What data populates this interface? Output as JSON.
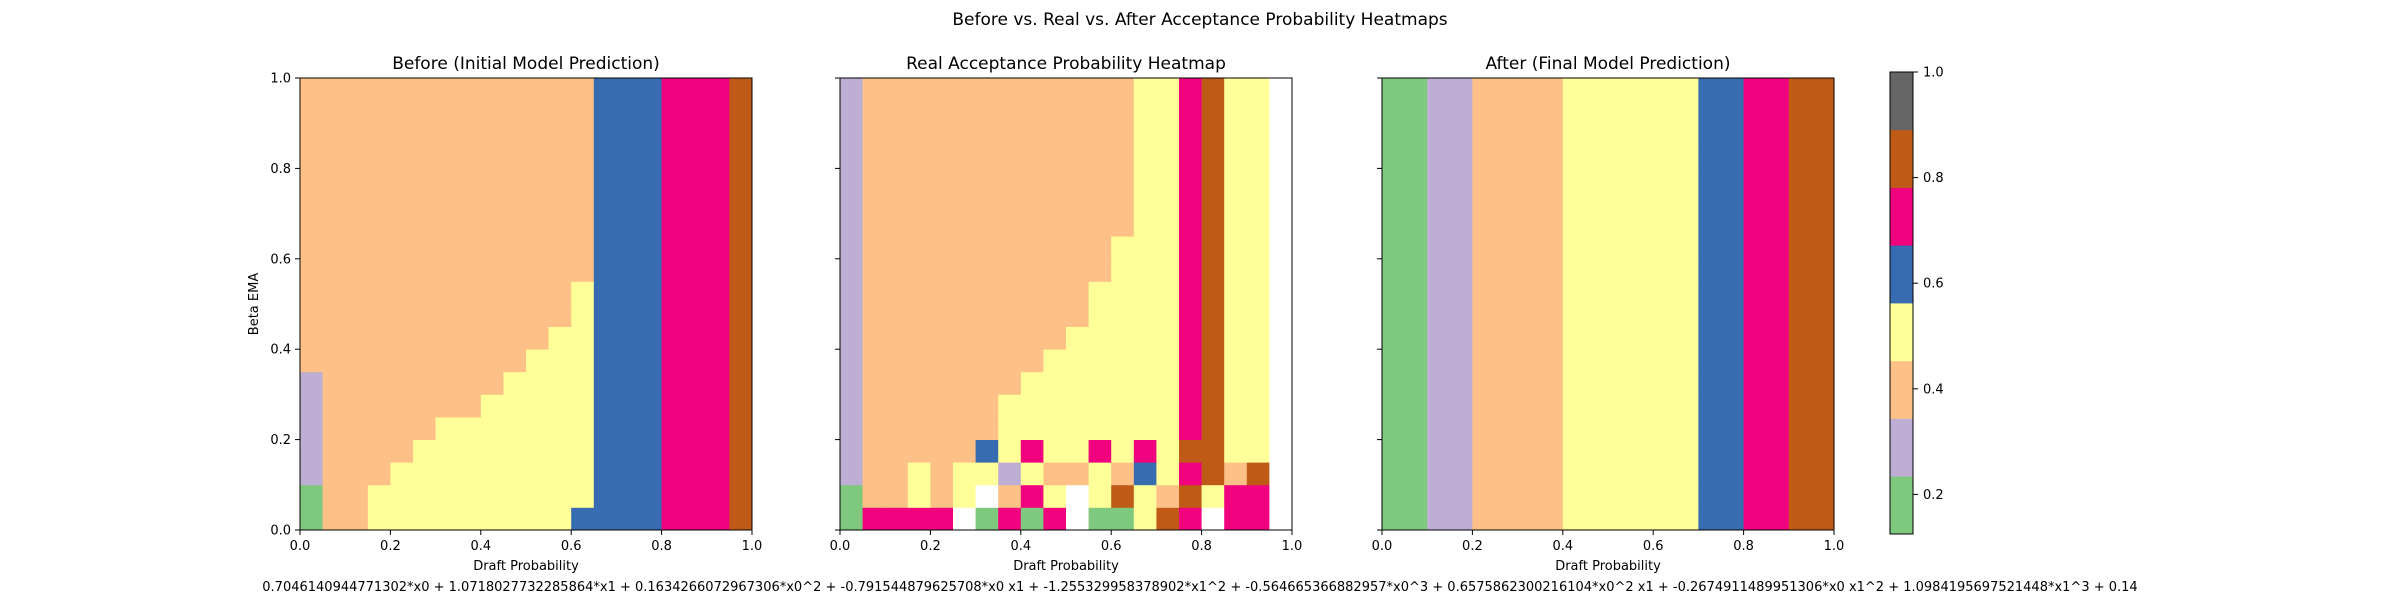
{
  "figure": {
    "suptitle": "Before vs. Real vs. After Acceptance Probability Heatmaps",
    "footnote": "0.7046140944771302*x0 + 1.0718027732285864*x1 + 0.1634266072967306*x0^2 + -0.791544879625708*x0 x1 + -1.255329958378902*x1^2 + -0.564665366882957*x0^3 + 0.6575862300216104*x0^2 x1 + -0.2674911489951306*x0 x1^2 + 1.0984195697521448*x1^3 + 0.14"
  },
  "colorbar": {
    "ticks": [
      "0.2",
      "0.4",
      "0.6",
      "0.8",
      "1.0"
    ],
    "colors": [
      "#7fc97f",
      "#beaed4",
      "#fdc086",
      "#ffff99",
      "#386cb0",
      "#f0027f",
      "#bf5b17",
      "#666666"
    ]
  },
  "chart_data": [
    {
      "type": "heatmap",
      "title": "Before (Initial Model Prediction)",
      "xlabel": "Draft Probability",
      "ylabel": "Beta EMA",
      "xlim": [
        0,
        1
      ],
      "ylim": [
        0,
        1
      ],
      "xticks": [
        "0.0",
        "0.2",
        "0.4",
        "0.6",
        "0.8",
        "1.0"
      ],
      "yticks": [
        "0.0",
        "0.2",
        "0.4",
        "0.6",
        "0.8",
        "1.0"
      ],
      "grid_size": 20,
      "value_range": [
        0,
        1
      ],
      "colormap": "Accent (8 bins)",
      "rows_bottom_to_top": [
        "02233333333344445556",
        "02233333333334445556",
        "12223333333334445556",
        "12222333333334445556",
        "12222233333334445556",
        "12222222333334445556",
        "12222222233334445556",
        "22222222223334445556",
        "22222222222334445556",
        "22222222222234445556",
        "22222222222234445556",
        "22222222222224445556",
        "22222222222224445556",
        "22222222222224445556",
        "22222222222224445556",
        "22222222222224445556",
        "22222222222224445556",
        "22222222222224445556",
        "22222222222224445556",
        "22222222222224445556"
      ]
    },
    {
      "type": "heatmap",
      "title": "Real Acceptance Probability Heatmap",
      "xlabel": "Draft Probability",
      "ylabel": "",
      "xlim": [
        0,
        1
      ],
      "ylim": [
        0,
        1
      ],
      "xticks": [
        "0.0",
        "0.2",
        "0.4",
        "0.6",
        "0.8",
        "1.0"
      ],
      "yticks": [],
      "grid_size": 20,
      "value_range": [
        0,
        1
      ],
      "colormap": "Accent (8 bins)",
      "rows_bottom_to_top": [
        "05555705057003657557",
        "02232372537363263557",
        "12232331322324356267",
        "12222243533535366337",
        "12222223333333356337",
        "12222223333333356337",
        "12222222333333356337",
        "12222222233333356337",
        "12222222223333356337",
        "12222222222333356337",
        "12222222222333356337",
        "12222222222233356337",
        "12222222222233356337",
        "12222222222223356337",
        "12222222222223356337",
        "12222222222223356337",
        "12222222222223356337",
        "12222222222223356337",
        "12222222222223356337",
        "12222222222223356337"
      ]
    },
    {
      "type": "heatmap",
      "title": "After (Final Model Prediction)",
      "xlabel": "Draft Probability",
      "ylabel": "",
      "xlim": [
        0,
        1
      ],
      "ylim": [
        0,
        1
      ],
      "xticks": [
        "0.0",
        "0.2",
        "0.4",
        "0.6",
        "0.8",
        "1.0"
      ],
      "yticks": [],
      "grid_size": 20,
      "value_range": [
        0,
        1
      ],
      "colormap": "Accent (8 bins)",
      "rows_bottom_to_top": [
        "00112222333333445566",
        "00112222333333445566",
        "00112222333333445566",
        "00112222333333445566",
        "00112222333333445566",
        "00112222333333445566",
        "00112222333333445566",
        "00112222333333445566",
        "00112222333333445566",
        "00112222333333445566",
        "00112222333333445566",
        "00112222333333445566",
        "00112222333333445566",
        "00112222333333445566",
        "00112222333333445566",
        "00112222333333445566",
        "00112222333333445566",
        "00112222333333445566",
        "00112222333333445566",
        "00112222333333445566"
      ]
    }
  ]
}
